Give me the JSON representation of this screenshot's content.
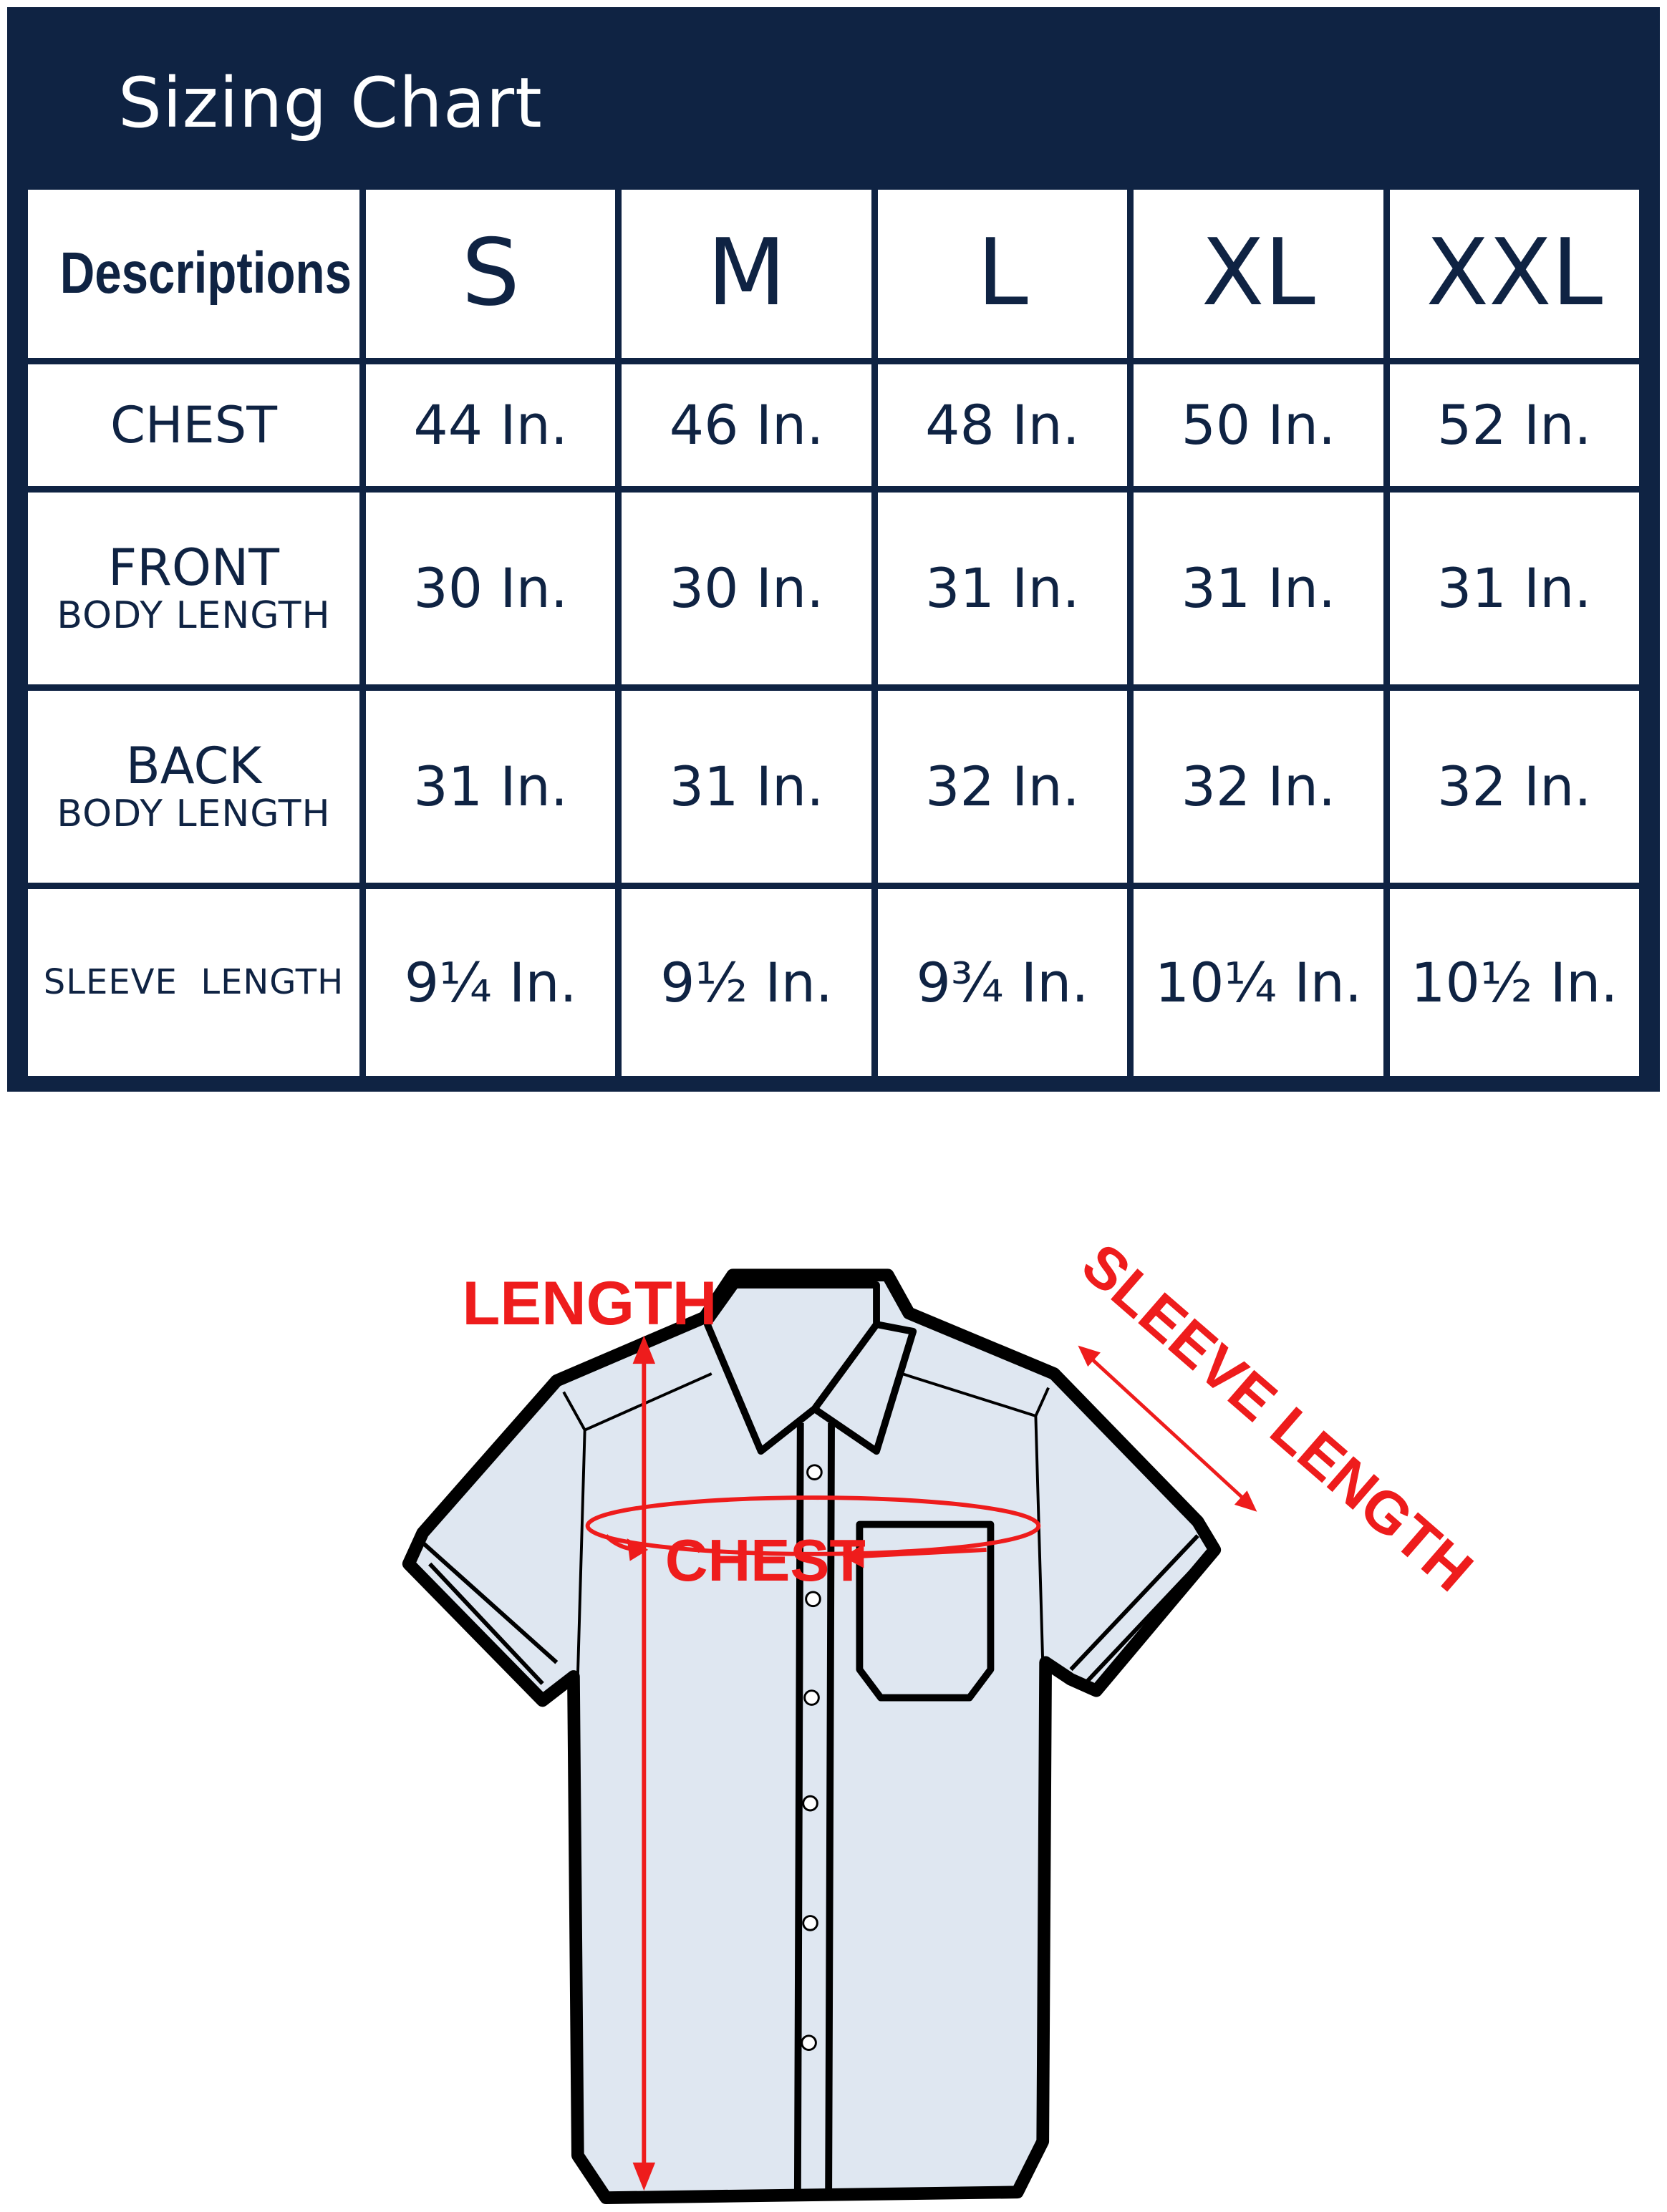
{
  "title": "Sizing Chart",
  "table": {
    "header": {
      "label": "Descriptions",
      "sizes": [
        "S",
        "M",
        "L",
        "XL",
        "XXL"
      ]
    },
    "rows": [
      {
        "label": "CHEST",
        "sublabel": "",
        "values": [
          "44 In.",
          "46 In.",
          "48 In.",
          "50 In.",
          "52 In."
        ]
      },
      {
        "label": "FRONT",
        "sublabel": "BODY LENGTH",
        "values": [
          "30 In.",
          "30 In.",
          "31 In.",
          "31 In.",
          "31 In."
        ]
      },
      {
        "label": "BACK",
        "sublabel": "BODY LENGTH",
        "values": [
          "31 In.",
          "31 In.",
          "32 In.",
          "32 In.",
          "32 In."
        ]
      },
      {
        "label": "SLEEVE  LENGTH",
        "sublabel": "",
        "values": [
          "9¼ In.",
          "9½ In.",
          "9¾ In.",
          "10¼ In.",
          "10½ In."
        ]
      }
    ]
  },
  "diagram": {
    "length_label": "LENGTH",
    "chest_label": "CHEST",
    "sleeve_label": "SLEEVE LENGTH",
    "colors": {
      "navy": "#0f2343",
      "annotation": "#ee1c1c",
      "shirt": "#dfe7f1"
    }
  }
}
